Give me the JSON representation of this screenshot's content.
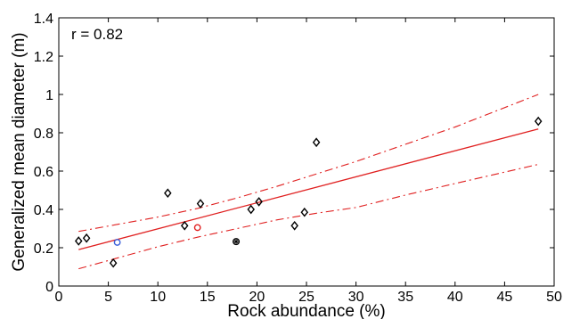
{
  "chart_data": {
    "type": "scatter",
    "title": "",
    "xlabel": "Rock abundance (%)",
    "ylabel": "Generalized mean diameter (m)",
    "xlim": [
      0,
      50
    ],
    "ylim": [
      0,
      1.4
    ],
    "xticks": [
      0,
      5,
      10,
      15,
      20,
      25,
      30,
      35,
      40,
      45,
      50
    ],
    "yticks": [
      0,
      0.2,
      0.4,
      0.6,
      0.8,
      1,
      1.2,
      1.4
    ],
    "xtick_labels": [
      "0",
      "5",
      "10",
      "15",
      "20",
      "25",
      "30",
      "35",
      "40",
      "45",
      "50"
    ],
    "ytick_labels": [
      "0",
      "0.2",
      "0.4",
      "0.6",
      "0.8",
      "1",
      "1.2",
      "1.4"
    ],
    "annotation": "r = 0.82",
    "grid": false,
    "series": [
      {
        "marker": "diamond",
        "color": "#000000",
        "points": [
          {
            "x": 2.0,
            "y": 0.235
          },
          {
            "x": 2.8,
            "y": 0.25
          },
          {
            "x": 5.5,
            "y": 0.12
          },
          {
            "x": 11.0,
            "y": 0.485
          },
          {
            "x": 12.7,
            "y": 0.315
          },
          {
            "x": 14.3,
            "y": 0.43
          },
          {
            "x": 19.4,
            "y": 0.4
          },
          {
            "x": 20.2,
            "y": 0.44
          },
          {
            "x": 23.8,
            "y": 0.315
          },
          {
            "x": 24.8,
            "y": 0.385
          },
          {
            "x": 26.0,
            "y": 0.75
          },
          {
            "x": 48.4,
            "y": 0.86
          }
        ]
      },
      {
        "marker": "circle",
        "color": "#3a5fd9",
        "points": [
          {
            "x": 5.9,
            "y": 0.228
          }
        ]
      },
      {
        "marker": "circle",
        "color": "#e02020",
        "points": [
          {
            "x": 14.0,
            "y": 0.305
          }
        ]
      },
      {
        "marker": "hatched-circle",
        "color": "#000000",
        "points": [
          {
            "x": 17.9,
            "y": 0.232
          }
        ]
      }
    ],
    "fit_line": {
      "color": "#e02020",
      "style": "solid",
      "x": [
        2.0,
        48.4
      ],
      "y": [
        0.19,
        0.82
      ]
    },
    "confidence_bounds": [
      {
        "color": "#e02020",
        "style": "dash-dot",
        "x": [
          2.0,
          10,
          14,
          18,
          22,
          26,
          30,
          35,
          40,
          48.4
        ],
        "y": [
          0.285,
          0.36,
          0.405,
          0.46,
          0.52,
          0.585,
          0.65,
          0.74,
          0.83,
          1.0
        ]
      },
      {
        "color": "#e02020",
        "style": "dash-dot",
        "x": [
          2.0,
          10,
          14,
          18,
          22,
          26,
          30,
          35,
          40,
          48.4
        ],
        "y": [
          0.09,
          0.205,
          0.255,
          0.3,
          0.345,
          0.38,
          0.41,
          0.475,
          0.535,
          0.635
        ]
      }
    ]
  }
}
